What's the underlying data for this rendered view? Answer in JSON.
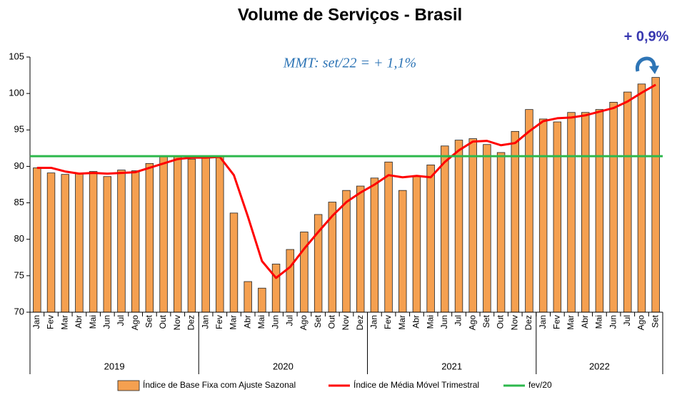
{
  "chart_data": {
    "type": "bar",
    "title": "Volume de Serviços - Brasil",
    "annotations": [
      "MMT: set/22 =  + 1,1%",
      "+ 0,9%"
    ],
    "category_groups": [
      {
        "label": "2019",
        "categories": [
          "Jan",
          "Fev",
          "Mar",
          "Abr",
          "Mai",
          "Jun",
          "Jul",
          "Ago",
          "Set",
          "Out",
          "Nov",
          "Dez"
        ]
      },
      {
        "label": "2020",
        "categories": [
          "Jan",
          "Fev",
          "Mar",
          "Abr",
          "Mai",
          "Jun",
          "Jul",
          "Ago",
          "Set",
          "Out",
          "Nov",
          "Dez"
        ]
      },
      {
        "label": "2021",
        "categories": [
          "Jan",
          "Fev",
          "Mar",
          "Abr",
          "Mai",
          "Jun",
          "Jul",
          "Ago",
          "Set",
          "Out",
          "Nov",
          "Dez"
        ]
      },
      {
        "label": "2022",
        "categories": [
          "Jan",
          "Fev",
          "Mar",
          "Abr",
          "Mai",
          "Jun",
          "Jul",
          "Ago",
          "Set"
        ]
      }
    ],
    "series": [
      {
        "name": "Índice de Base Fixa com Ajuste Sazonal",
        "type": "bar",
        "color": "#f5a050",
        "values": [
          89.8,
          89.1,
          88.9,
          89.0,
          89.3,
          88.6,
          89.5,
          89.4,
          90.4,
          91.3,
          91.3,
          91.0,
          91.4,
          91.4,
          83.6,
          74.2,
          73.3,
          76.6,
          78.6,
          81.0,
          83.4,
          85.1,
          86.7,
          87.3,
          88.4,
          90.6,
          86.7,
          88.7,
          90.2,
          92.8,
          93.6,
          93.8,
          93.0,
          91.9,
          94.8,
          97.8,
          96.5,
          96.1,
          97.4,
          97.4,
          97.8,
          98.8,
          100.2,
          101.3,
          102.2
        ]
      },
      {
        "name": "Índice de Média Móvel Trimestral",
        "type": "line",
        "color": "#ff0000",
        "values": [
          89.8,
          89.8,
          89.3,
          89.0,
          89.1,
          89.0,
          89.1,
          89.2,
          89.8,
          90.4,
          91.0,
          91.2,
          91.2,
          91.3,
          88.8,
          83.1,
          77.0,
          74.7,
          76.2,
          78.7,
          81.0,
          83.2,
          85.1,
          86.4,
          87.5,
          88.8,
          88.5,
          88.7,
          88.5,
          90.6,
          92.2,
          93.4,
          93.5,
          92.9,
          93.2,
          94.8,
          96.2,
          96.6,
          96.7,
          97.0,
          97.5,
          98.0,
          98.9,
          100.1,
          101.2
        ]
      }
    ],
    "reference_line": {
      "name": "fev/20",
      "color": "#2db84c",
      "value": 91.4
    },
    "ylim": [
      70,
      105
    ],
    "yticks": [
      70,
      75,
      80,
      85,
      90,
      95,
      100,
      105
    ]
  }
}
